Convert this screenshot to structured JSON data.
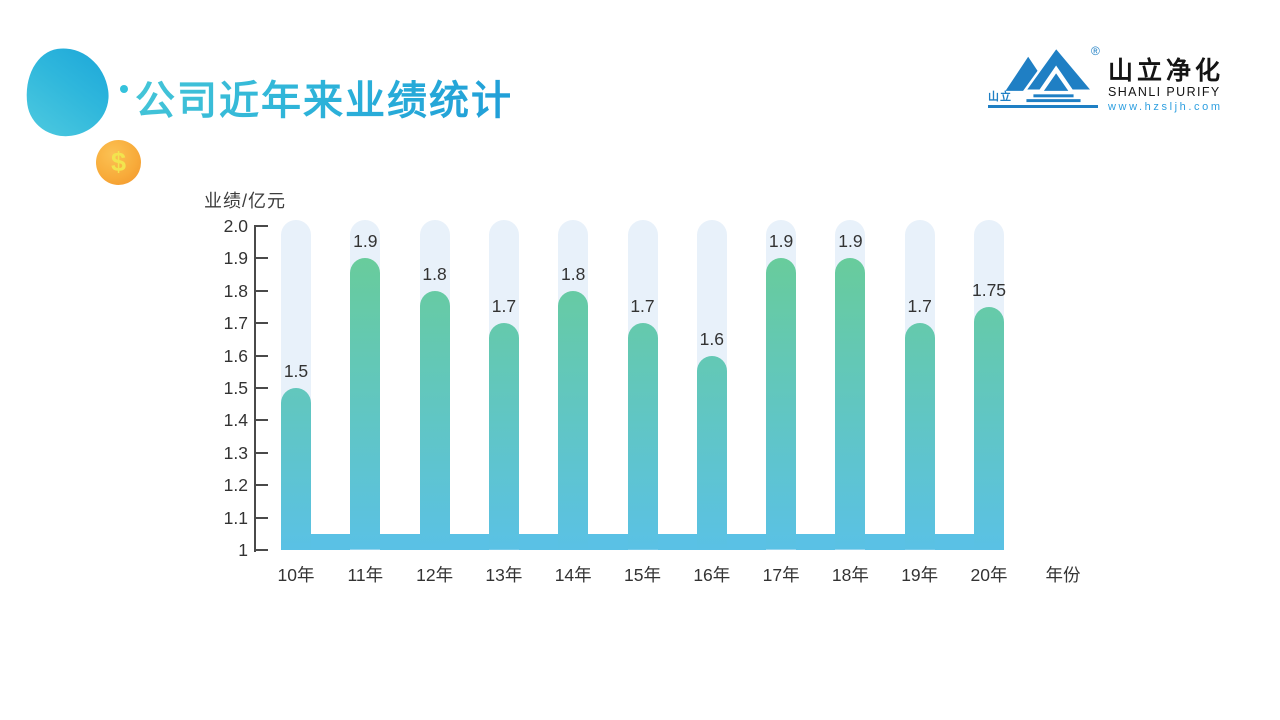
{
  "slide": {
    "title": "公司近年来业绩统计"
  },
  "logo": {
    "brand_cn": "山立净化",
    "brand_en": "SHANLI PURIFY",
    "website": "www.hzsljh.com",
    "mark_text": "山立",
    "registered": "®",
    "blue": "#1F7FC4"
  },
  "decorations": {
    "coin_symbol": "$",
    "blob_color_dark": "#1CA6D9",
    "blob_color_light": "#4FCADF",
    "coin_color": "#F8AC3B"
  },
  "chart_data": {
    "type": "bar",
    "title": "公司近年来业绩统计",
    "ylabel": "业绩/亿元",
    "xlabel": "年份",
    "categories": [
      "10年",
      "11年",
      "12年",
      "13年",
      "14年",
      "15年",
      "16年",
      "17年",
      "18年",
      "19年",
      "20年"
    ],
    "values": [
      1.5,
      1.9,
      1.8,
      1.7,
      1.8,
      1.7,
      1.6,
      1.9,
      1.9,
      1.7,
      1.75
    ],
    "value_labels": [
      "1.5",
      "1.9",
      "1.8",
      "1.7",
      "1.8",
      "1.7",
      "1.6",
      "1.9",
      "1.9",
      "1.7",
      "1.75"
    ],
    "ylim": [
      1,
      2.0
    ],
    "ytick_values": [
      2.0,
      1.9,
      1.8,
      1.7,
      1.6,
      1.5,
      1.4,
      1.3,
      1.2,
      1.1,
      1
    ],
    "ytick_labels": [
      "2.0",
      "1.9",
      "1.8",
      "1.7",
      "1.6",
      "1.5",
      "1.4",
      "1.3",
      "1.2",
      "1.1",
      "1"
    ],
    "grid": false,
    "legend": false,
    "style": {
      "track_color": "#E8F1FA",
      "bar_gradient_top": "#6ACD92",
      "bar_gradient_bottom": "#5AC1E5",
      "axis_color": "#4A4A4A",
      "text_color": "#333333"
    }
  }
}
